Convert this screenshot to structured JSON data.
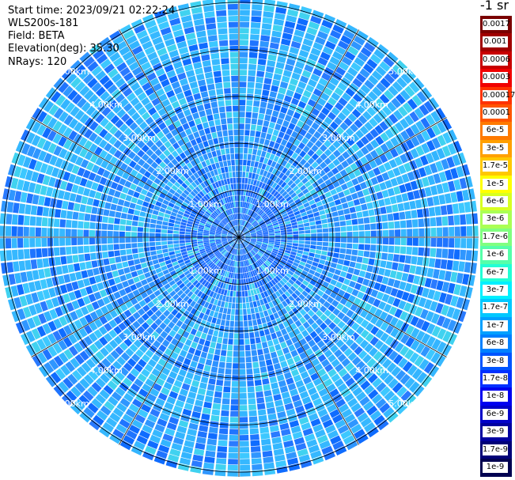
{
  "header": {
    "start_time": "Start time: 2023/09/21 02:22:24",
    "instrument": "WLS200s-181",
    "field": "Field: BETA",
    "elevation": "Elevation(deg): 35.30",
    "nrays": "NRays: 120"
  },
  "colorbar": {
    "unit": "-1 sr",
    "levels": [
      {
        "label": "0.0017",
        "color": "#7a0000"
      },
      {
        "label": "0.001",
        "color": "#a00000"
      },
      {
        "label": "0.0006",
        "color": "#c80000"
      },
      {
        "label": "0.0003",
        "color": "#f00000"
      },
      {
        "label": "0.00017",
        "color": "#ff3300"
      },
      {
        "label": "0.0001",
        "color": "#ff5500"
      },
      {
        "label": "6e-5",
        "color": "#ff7a00"
      },
      {
        "label": "3e-5",
        "color": "#ffa000"
      },
      {
        "label": "1.7e-5",
        "color": "#ffc800"
      },
      {
        "label": "1e-5",
        "color": "#ffff00"
      },
      {
        "label": "6e-6",
        "color": "#d8ff22"
      },
      {
        "label": "3e-6",
        "color": "#aaff55"
      },
      {
        "label": "1.7e-6",
        "color": "#80ff80"
      },
      {
        "label": "1e-6",
        "color": "#55ffaa"
      },
      {
        "label": "6e-7",
        "color": "#22ffd5"
      },
      {
        "label": "3e-7",
        "color": "#00f0ff"
      },
      {
        "label": "1.7e-7",
        "color": "#00c8ff"
      },
      {
        "label": "1e-7",
        "color": "#00a0ff"
      },
      {
        "label": "6e-8",
        "color": "#0080ff"
      },
      {
        "label": "3e-8",
        "color": "#0055ff"
      },
      {
        "label": "1.7e-8",
        "color": "#0030ff"
      },
      {
        "label": "1e-8",
        "color": "#0000f0"
      },
      {
        "label": "6e-9",
        "color": "#0000c8"
      },
      {
        "label": "3e-9",
        "color": "#0000a0"
      },
      {
        "label": "1.7e-9",
        "color": "#000078"
      },
      {
        "label": "1e-9",
        "color": "#000050"
      }
    ]
  },
  "chart_data": {
    "type": "heatmap",
    "projection": "polar",
    "field": "BETA",
    "nrays": 120,
    "range_rings_km": [
      1,
      2,
      3,
      4,
      5
    ],
    "range_labels": [
      "1.00km",
      "2.00km",
      "3.00km",
      "4.00km",
      "5.00km"
    ],
    "max_range_km": 5.1,
    "spokes_deg": [
      0,
      30,
      60,
      90,
      120,
      150,
      180,
      210,
      240,
      270,
      300,
      330
    ],
    "label_bearings_deg": [
      45,
      135,
      225,
      315
    ],
    "dominant_value_range": [
      6e-08,
      1e-07
    ],
    "palette_cells": [
      "#1aa0ff",
      "#1e8cff",
      "#2a7aff",
      "#33b5ff",
      "#3dc8ff",
      "#0f6cff",
      "#2f96ff",
      "#40d2f0",
      "#1f74ff"
    ],
    "gate_colors": {
      "near": "#1f6cff",
      "mid": "#2e92ff",
      "far": "#36b8ff"
    }
  }
}
